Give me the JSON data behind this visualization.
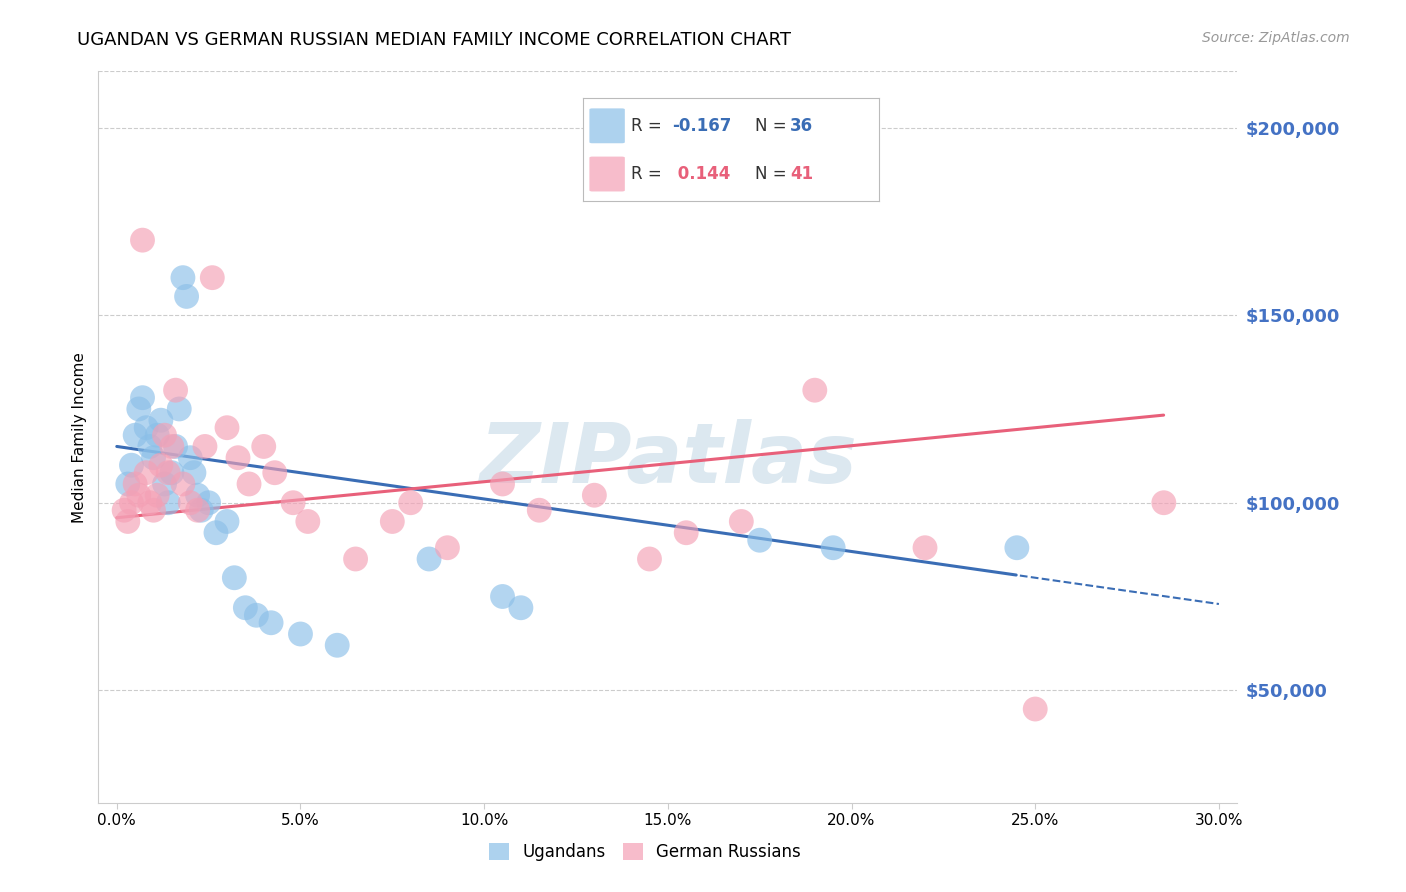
{
  "title": "UGANDAN VS GERMAN RUSSIAN MEDIAN FAMILY INCOME CORRELATION CHART",
  "source": "Source: ZipAtlas.com",
  "ylabel": "Median Family Income",
  "xlabel_ticks": [
    "0.0%",
    "5.0%",
    "10.0%",
    "15.0%",
    "20.0%",
    "25.0%",
    "30.0%"
  ],
  "xlabel_vals": [
    0.0,
    5.0,
    10.0,
    15.0,
    20.0,
    25.0,
    30.0
  ],
  "ylabel_ticks": [
    50000,
    100000,
    150000,
    200000
  ],
  "ylabel_labels": [
    "$50,000",
    "$100,000",
    "$150,000",
    "$200,000"
  ],
  "ylim": [
    20000,
    215000
  ],
  "xlim": [
    -0.5,
    30.5
  ],
  "ugandan_x": [
    0.3,
    0.4,
    0.5,
    0.6,
    0.7,
    0.8,
    0.9,
    1.0,
    1.1,
    1.2,
    1.3,
    1.4,
    1.5,
    1.6,
    1.7,
    1.8,
    1.9,
    2.0,
    2.1,
    2.2,
    2.3,
    2.5,
    2.7,
    3.0,
    3.2,
    3.5,
    3.8,
    4.2,
    5.0,
    6.0,
    8.5,
    10.5,
    11.0,
    17.5,
    19.5,
    24.5
  ],
  "ugandan_y": [
    105000,
    110000,
    118000,
    125000,
    128000,
    120000,
    115000,
    112000,
    118000,
    122000,
    105000,
    100000,
    108000,
    115000,
    125000,
    160000,
    155000,
    112000,
    108000,
    102000,
    98000,
    100000,
    92000,
    95000,
    80000,
    72000,
    70000,
    68000,
    65000,
    62000,
    85000,
    75000,
    72000,
    90000,
    88000,
    88000
  ],
  "german_russian_x": [
    0.2,
    0.3,
    0.4,
    0.5,
    0.6,
    0.7,
    0.8,
    0.9,
    1.0,
    1.1,
    1.2,
    1.3,
    1.4,
    1.5,
    1.6,
    1.8,
    2.0,
    2.2,
    2.4,
    2.6,
    3.0,
    3.3,
    3.6,
    4.0,
    4.3,
    4.8,
    5.2,
    6.5,
    7.5,
    8.0,
    9.0,
    10.5,
    11.5,
    13.0,
    14.5,
    15.5,
    17.0,
    19.0,
    22.0,
    25.0,
    28.5
  ],
  "german_russian_y": [
    98000,
    95000,
    100000,
    105000,
    102000,
    170000,
    108000,
    100000,
    98000,
    102000,
    110000,
    118000,
    108000,
    115000,
    130000,
    105000,
    100000,
    98000,
    115000,
    160000,
    120000,
    112000,
    105000,
    115000,
    108000,
    100000,
    95000,
    85000,
    95000,
    100000,
    88000,
    105000,
    98000,
    102000,
    85000,
    92000,
    95000,
    130000,
    88000,
    45000,
    100000
  ],
  "ugandan_color": "#8bbfe8",
  "german_russian_color": "#f4a0b5",
  "ugandan_line_color": "#3a6db5",
  "german_russian_line_color": "#e8607a",
  "ugandan_line_solid_end": 24.5,
  "german_russian_line_solid_end": 28.5,
  "background_color": "#ffffff",
  "grid_color": "#cccccc",
  "watermark": "ZIPatlas",
  "watermark_color": "#dce8f0",
  "title_fontsize": 13,
  "source_fontsize": 10,
  "axis_label_fontsize": 11,
  "tick_fontsize": 11
}
